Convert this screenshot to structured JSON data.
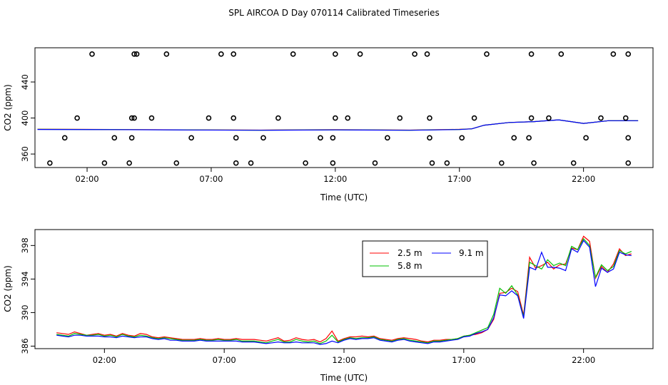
{
  "chart_data": [
    {
      "type": "scatter",
      "title": "SPL AIRCOA D  Day 070114  Calibrated Timeseries",
      "xlabel": "Time (UTC)",
      "ylabel": "CO2 (ppm)",
      "x_ticks": [
        "02:00",
        "07:00",
        "12:00",
        "17:00",
        "22:00"
      ],
      "x_tick_values": [
        2,
        7,
        12,
        17,
        22
      ],
      "y_ticks": [
        "360",
        "400",
        "440"
      ],
      "y_tick_values": [
        360,
        400,
        440
      ],
      "xlim": [
        -0.1,
        24.8
      ],
      "ylim": [
        345,
        478
      ],
      "points_x": [
        0.5,
        1.1,
        1.6,
        2.2,
        2.7,
        3.1,
        3.7,
        3.8,
        3.8,
        3.9,
        3.9,
        4.0,
        4.6,
        5.2,
        5.6,
        6.2,
        6.9,
        7.4,
        7.9,
        7.9,
        8.0,
        8.0,
        8.6,
        9.1,
        9.7,
        10.3,
        10.8,
        11.4,
        11.9,
        11.9,
        12.0,
        12.0,
        12.5,
        13.0,
        13.6,
        14.1,
        14.6,
        15.2,
        15.7,
        15.8,
        15.8,
        15.9,
        16.5,
        17.1,
        17.6,
        18.1,
        18.7,
        19.2,
        19.8,
        19.9,
        19.9,
        20.0,
        20.6,
        21.1,
        21.6,
        22.1,
        22.7,
        23.2,
        23.7,
        23.8,
        23.8,
        23.8
      ],
      "points_y": [
        350,
        378,
        400,
        471,
        350,
        378,
        350,
        378,
        400,
        471,
        400,
        471,
        400,
        471,
        350,
        378,
        400,
        471,
        471,
        400,
        378,
        350,
        350,
        378,
        400,
        471,
        350,
        378,
        350,
        378,
        400,
        471,
        400,
        471,
        350,
        378,
        400,
        471,
        471,
        400,
        378,
        350,
        350,
        378,
        400,
        471,
        350,
        378,
        378,
        400,
        471,
        350,
        400,
        471,
        350,
        378,
        400,
        471,
        400,
        471,
        378,
        350
      ],
      "series": [
        {
          "name": "",
          "color": "#ff0000",
          "x": [
            0,
            3,
            6,
            9,
            12,
            15,
            17,
            17.5,
            18,
            19,
            20,
            21,
            22,
            23,
            24.2
          ],
          "y": [
            387.6,
            387.3,
            386.9,
            386.6,
            387.0,
            386.6,
            387.4,
            388,
            392,
            395,
            396,
            398,
            394,
            397,
            397
          ]
        },
        {
          "name": "",
          "color": "#00c000",
          "x": [
            0,
            3,
            6,
            9,
            12,
            15,
            17,
            17.5,
            18,
            19,
            20,
            21,
            22,
            23,
            24.2
          ],
          "y": [
            387.4,
            387.2,
            386.8,
            386.5,
            386.9,
            386.5,
            387.3,
            388,
            392,
            395,
            396,
            398,
            394,
            397,
            397
          ]
        },
        {
          "name": "",
          "color": "#0000ff",
          "x": [
            0,
            3,
            6,
            9,
            12,
            15,
            17,
            17.5,
            18,
            19,
            20,
            21,
            22,
            23,
            24.2
          ],
          "y": [
            387.3,
            387.1,
            386.7,
            386.4,
            386.8,
            386.4,
            387.2,
            388,
            392,
            395,
            396,
            398,
            394,
            397,
            397
          ]
        }
      ]
    },
    {
      "type": "line",
      "xlabel": "Time (UTC)",
      "ylabel": "CO2 (ppm)",
      "x_ticks": [
        "02:00",
        "07:00",
        "12:00",
        "17:00",
        "22:00"
      ],
      "x_tick_values": [
        2,
        7,
        12,
        17,
        22
      ],
      "y_ticks": [
        "386",
        "390",
        "394",
        "398"
      ],
      "y_tick_values": [
        386,
        390,
        394,
        398
      ],
      "xlim": [
        -0.9,
        24.9
      ],
      "ylim": [
        385.7,
        399.9
      ],
      "legend": {
        "position": "top-right",
        "entries": [
          {
            "label": "2.5 m",
            "color": "#ff0000"
          },
          {
            "label": "5.8 m",
            "color": "#00c000"
          },
          {
            "label": "9.1 m",
            "color": "#0000ff"
          }
        ]
      },
      "x": [
        0.0,
        0.25,
        0.5,
        0.75,
        1.0,
        1.25,
        1.5,
        1.75,
        2.0,
        2.25,
        2.5,
        2.75,
        3.0,
        3.25,
        3.5,
        3.75,
        4.0,
        4.25,
        4.5,
        4.75,
        5.0,
        5.25,
        5.5,
        5.75,
        6.0,
        6.25,
        6.5,
        6.75,
        7.0,
        7.25,
        7.5,
        7.75,
        8.0,
        8.25,
        8.5,
        8.75,
        9.0,
        9.25,
        9.5,
        9.75,
        10.0,
        10.25,
        10.5,
        10.75,
        11.0,
        11.25,
        11.5,
        11.75,
        12.0,
        12.25,
        12.5,
        12.75,
        13.0,
        13.25,
        13.5,
        13.75,
        14.0,
        14.25,
        14.5,
        14.75,
        15.0,
        15.25,
        15.5,
        15.75,
        16.0,
        16.25,
        16.5,
        16.75,
        17.0,
        17.25,
        17.5,
        17.75,
        18.0,
        18.25,
        18.5,
        18.75,
        19.0,
        19.25,
        19.5,
        19.75,
        20.0,
        20.25,
        20.5,
        20.75,
        21.0,
        21.25,
        21.5,
        21.75,
        22.0,
        22.25,
        22.5,
        22.75,
        23.0,
        23.25,
        23.5,
        23.75,
        24.0
      ],
      "series": [
        {
          "name": "2.5 m",
          "color": "#ff0000",
          "values": [
            387.6,
            387.5,
            387.4,
            387.7,
            387.5,
            387.3,
            387.4,
            387.5,
            387.3,
            387.4,
            387.2,
            387.5,
            387.3,
            387.2,
            387.5,
            387.4,
            387.1,
            387.0,
            387.1,
            387.0,
            386.9,
            386.8,
            386.8,
            386.8,
            386.9,
            386.8,
            386.8,
            386.9,
            386.8,
            386.8,
            386.9,
            386.8,
            386.8,
            386.8,
            386.7,
            386.6,
            386.8,
            387.0,
            386.6,
            386.7,
            387.0,
            386.8,
            386.7,
            386.8,
            386.5,
            386.9,
            387.8,
            386.6,
            386.9,
            387.1,
            387.1,
            387.2,
            387.1,
            387.2,
            386.9,
            386.8,
            386.7,
            386.9,
            387.0,
            386.9,
            386.8,
            386.6,
            386.5,
            386.7,
            386.7,
            386.8,
            386.8,
            386.9,
            387.2,
            387.3,
            387.4,
            387.6,
            388.0,
            389.2,
            392.3,
            392.4,
            392.9,
            392.5,
            389.7,
            396.6,
            395.3,
            395.6,
            396.0,
            395.2,
            395.7,
            395.8,
            397.7,
            397.5,
            399.1,
            398.5,
            394.1,
            395.5,
            394.8,
            395.8,
            397.6,
            396.8,
            397.0
          ]
        },
        {
          "name": "5.8 m",
          "color": "#00c000",
          "values": [
            387.4,
            387.3,
            387.2,
            387.5,
            387.4,
            387.3,
            387.3,
            387.4,
            387.2,
            387.3,
            387.1,
            387.4,
            387.2,
            387.1,
            387.3,
            387.2,
            387.0,
            386.9,
            387.0,
            386.9,
            386.8,
            386.7,
            386.7,
            386.7,
            386.8,
            386.7,
            386.7,
            386.8,
            386.7,
            386.7,
            386.8,
            386.6,
            386.6,
            386.6,
            386.5,
            386.4,
            386.6,
            386.8,
            386.5,
            386.5,
            386.8,
            386.6,
            386.5,
            386.6,
            386.3,
            386.6,
            387.3,
            386.5,
            386.8,
            387.0,
            386.9,
            387.0,
            387.0,
            387.1,
            386.8,
            386.7,
            386.6,
            386.8,
            386.9,
            386.7,
            386.6,
            386.5,
            386.4,
            386.6,
            386.6,
            386.7,
            386.8,
            386.9,
            387.2,
            387.3,
            387.6,
            387.9,
            388.2,
            389.8,
            392.9,
            392.3,
            393.2,
            392.1,
            389.5,
            396.0,
            395.6,
            395.2,
            396.3,
            395.6,
            395.9,
            395.6,
            397.9,
            397.5,
            398.8,
            398.0,
            394.2,
            395.7,
            395.0,
            395.5,
            397.4,
            397.0,
            397.3
          ]
        },
        {
          "name": "9.1 m",
          "color": "#0000ff",
          "values": [
            387.3,
            387.2,
            387.1,
            387.3,
            387.3,
            387.2,
            387.2,
            387.2,
            387.1,
            387.1,
            387.0,
            387.2,
            387.1,
            387.0,
            387.1,
            387.1,
            386.9,
            386.8,
            386.9,
            386.7,
            386.7,
            386.6,
            386.6,
            386.6,
            386.7,
            386.6,
            386.6,
            386.6,
            386.6,
            386.6,
            386.6,
            386.5,
            386.5,
            386.5,
            386.4,
            386.3,
            386.4,
            386.5,
            386.4,
            386.4,
            386.5,
            386.4,
            386.4,
            386.4,
            386.2,
            386.3,
            386.6,
            386.4,
            386.7,
            386.9,
            386.8,
            386.9,
            386.9,
            387.0,
            386.7,
            386.6,
            386.5,
            386.7,
            386.8,
            386.6,
            386.5,
            386.4,
            386.3,
            386.5,
            386.5,
            386.6,
            386.7,
            386.8,
            387.1,
            387.2,
            387.5,
            387.7,
            388.0,
            389.4,
            392.1,
            392.0,
            392.6,
            392.0,
            389.3,
            395.4,
            395.1,
            397.2,
            395.4,
            395.4,
            395.3,
            395.0,
            397.6,
            397.2,
            398.6,
            397.8,
            393.1,
            395.3,
            394.8,
            395.2,
            397.2,
            396.9,
            396.8
          ]
        }
      ]
    }
  ]
}
